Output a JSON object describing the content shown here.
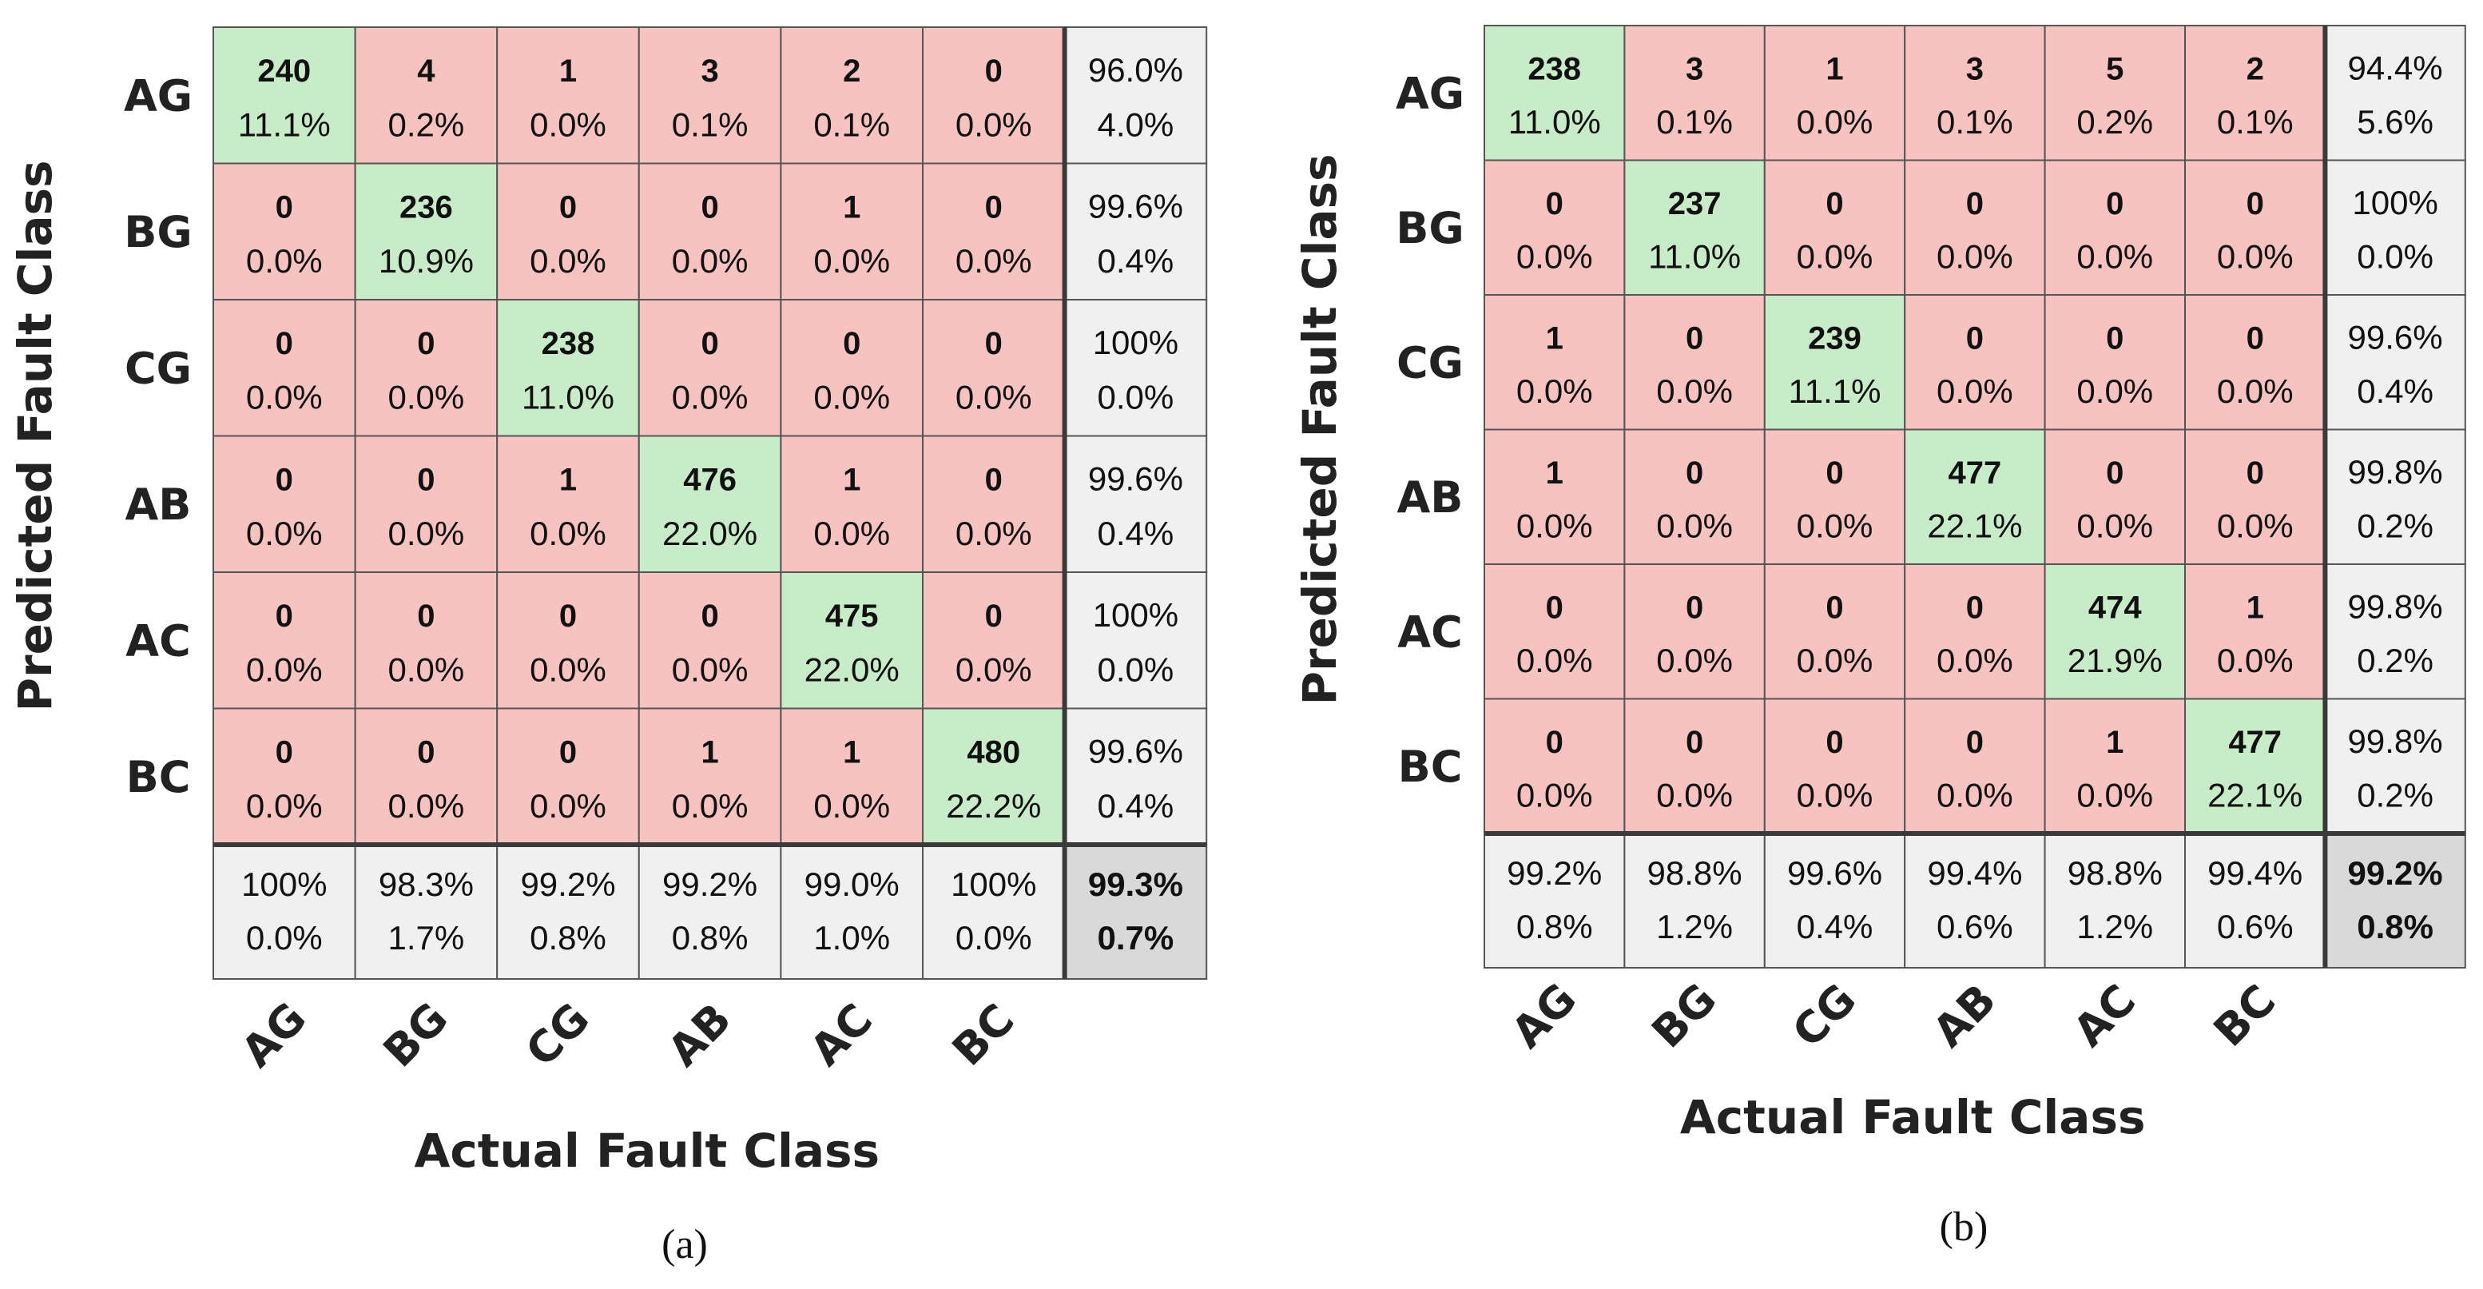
{
  "colors": {
    "correct": "#c8ebc8",
    "wrong": "#f7c3c0",
    "summary": "#f0f0f0",
    "overall": "#d9d9d9",
    "good_text": "#2aa52a",
    "bad_text": "#e0302a"
  },
  "chart_data": [
    {
      "type": "heatmap",
      "caption": "(a)",
      "xlabel": "Actual Fault Class",
      "ylabel": "Predicted Fault Class",
      "classes": [
        "AG",
        "BG",
        "CG",
        "AB",
        "AC",
        "BC"
      ],
      "counts": [
        [
          "240",
          "4",
          "1",
          "3",
          "2",
          "0"
        ],
        [
          "0",
          "236",
          "0",
          "0",
          "1",
          "0"
        ],
        [
          "0",
          "0",
          "238",
          "0",
          "0",
          "0"
        ],
        [
          "0",
          "0",
          "1",
          "476",
          "1",
          "0"
        ],
        [
          "0",
          "0",
          "0",
          "0",
          "475",
          "0"
        ],
        [
          "0",
          "0",
          "0",
          "1",
          "1",
          "480"
        ]
      ],
      "percents": [
        [
          "11.1%",
          "0.2%",
          "0.0%",
          "0.1%",
          "0.1%",
          "0.0%"
        ],
        [
          "0.0%",
          "10.9%",
          "0.0%",
          "0.0%",
          "0.0%",
          "0.0%"
        ],
        [
          "0.0%",
          "0.0%",
          "11.0%",
          "0.0%",
          "0.0%",
          "0.0%"
        ],
        [
          "0.0%",
          "0.0%",
          "0.0%",
          "22.0%",
          "0.0%",
          "0.0%"
        ],
        [
          "0.0%",
          "0.0%",
          "0.0%",
          "0.0%",
          "22.0%",
          "0.0%"
        ],
        [
          "0.0%",
          "0.0%",
          "0.0%",
          "0.0%",
          "0.0%",
          "22.2%"
        ]
      ],
      "row_summary": [
        [
          "96.0%",
          "4.0%"
        ],
        [
          "99.6%",
          "0.4%"
        ],
        [
          "100%",
          "0.0%"
        ],
        [
          "99.6%",
          "0.4%"
        ],
        [
          "100%",
          "0.0%"
        ],
        [
          "99.6%",
          "0.4%"
        ]
      ],
      "col_summary": [
        [
          "100%",
          "0.0%"
        ],
        [
          "98.3%",
          "1.7%"
        ],
        [
          "99.2%",
          "0.8%"
        ],
        [
          "99.2%",
          "0.8%"
        ],
        [
          "99.0%",
          "1.0%"
        ],
        [
          "100%",
          "0.0%"
        ]
      ],
      "overall": [
        "99.3%",
        "0.7%"
      ]
    },
    {
      "type": "heatmap",
      "caption": "(b)",
      "xlabel": "Actual Fault Class",
      "ylabel": "Predicted Fault Class",
      "classes": [
        "AG",
        "BG",
        "CG",
        "AB",
        "AC",
        "BC"
      ],
      "counts": [
        [
          "238",
          "3",
          "1",
          "3",
          "5",
          "2"
        ],
        [
          "0",
          "237",
          "0",
          "0",
          "0",
          "0"
        ],
        [
          "1",
          "0",
          "239",
          "0",
          "0",
          "0"
        ],
        [
          "1",
          "0",
          "0",
          "477",
          "0",
          "0"
        ],
        [
          "0",
          "0",
          "0",
          "0",
          "474",
          "1"
        ],
        [
          "0",
          "0",
          "0",
          "0",
          "1",
          "477"
        ]
      ],
      "percents": [
        [
          "11.0%",
          "0.1%",
          "0.0%",
          "0.1%",
          "0.2%",
          "0.1%"
        ],
        [
          "0.0%",
          "11.0%",
          "0.0%",
          "0.0%",
          "0.0%",
          "0.0%"
        ],
        [
          "0.0%",
          "0.0%",
          "11.1%",
          "0.0%",
          "0.0%",
          "0.0%"
        ],
        [
          "0.0%",
          "0.0%",
          "0.0%",
          "22.1%",
          "0.0%",
          "0.0%"
        ],
        [
          "0.0%",
          "0.0%",
          "0.0%",
          "0.0%",
          "21.9%",
          "0.0%"
        ],
        [
          "0.0%",
          "0.0%",
          "0.0%",
          "0.0%",
          "0.0%",
          "22.1%"
        ]
      ],
      "row_summary": [
        [
          "94.4%",
          "5.6%"
        ],
        [
          "100%",
          "0.0%"
        ],
        [
          "99.6%",
          "0.4%"
        ],
        [
          "99.8%",
          "0.2%"
        ],
        [
          "99.8%",
          "0.2%"
        ],
        [
          "99.8%",
          "0.2%"
        ]
      ],
      "col_summary": [
        [
          "99.2%",
          "0.8%"
        ],
        [
          "98.8%",
          "1.2%"
        ],
        [
          "99.6%",
          "0.4%"
        ],
        [
          "99.4%",
          "0.6%"
        ],
        [
          "98.8%",
          "1.2%"
        ],
        [
          "99.4%",
          "0.6%"
        ]
      ],
      "overall": [
        "99.2%",
        "0.8%"
      ]
    }
  ]
}
